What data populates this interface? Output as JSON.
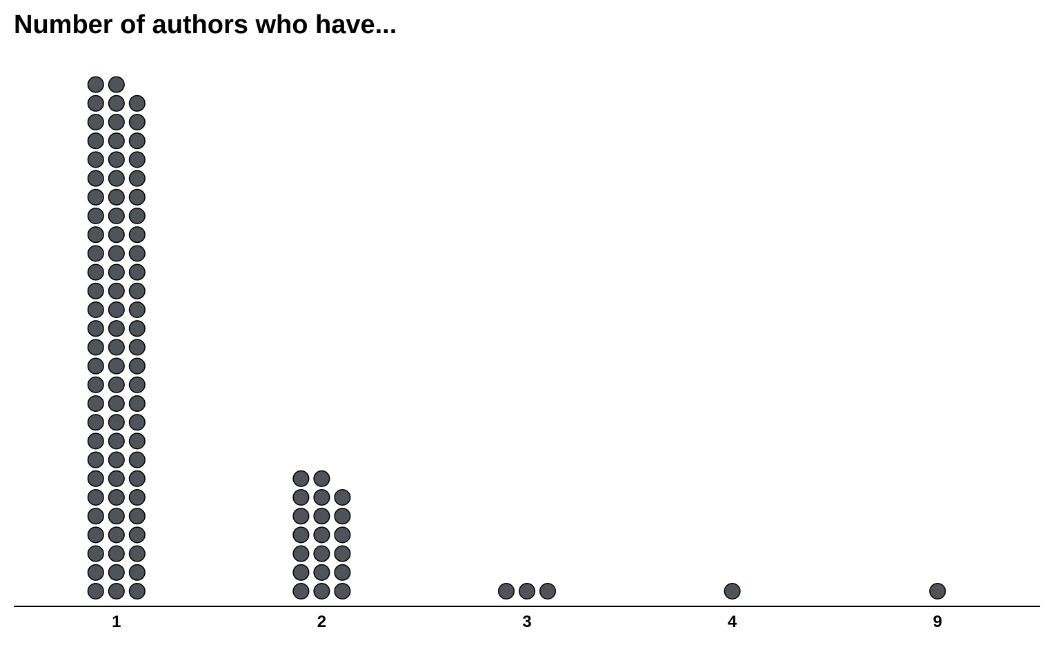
{
  "chart_data": {
    "type": "scatter",
    "subtype": "dot-plot",
    "title": "Number of authors who have...",
    "categories": [
      "1",
      "2",
      "3",
      "4",
      "9"
    ],
    "values": [
      83,
      20,
      3,
      1,
      1
    ],
    "xlabel": "",
    "ylabel": "",
    "grid": false,
    "legend": "none",
    "dot_color": "#4f545a",
    "dot_stroke_color": "#000000",
    "axis_color": "#000000"
  }
}
